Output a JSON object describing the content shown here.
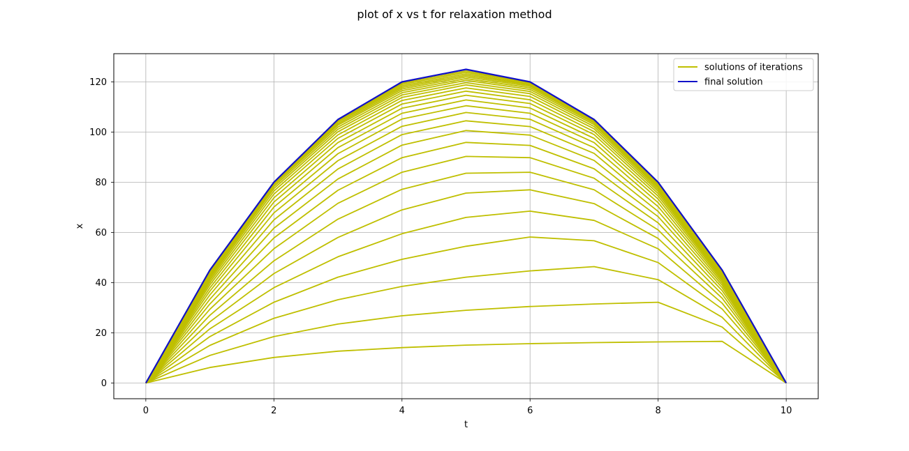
{
  "chart_data": {
    "type": "line",
    "title": "plot of x vs t for relaxation method",
    "xlabel": "t",
    "ylabel": "x",
    "xlim": [
      -0.5,
      10.5
    ],
    "ylim": [
      -6.25,
      131.25
    ],
    "xticks": [
      0,
      2,
      4,
      6,
      8,
      10
    ],
    "yticks": [
      0,
      20,
      40,
      60,
      80,
      100,
      120
    ],
    "grid": true,
    "legend_position": "top-right",
    "x": [
      0,
      1,
      2,
      3,
      4,
      5,
      6,
      7,
      8,
      9,
      10
    ],
    "iterations": {
      "legend": "solutions of iterations",
      "color": "#bfbf00",
      "series": [
        [
          0,
          6.2,
          10.2,
          12.7,
          14.1,
          15.1,
          15.7,
          16.1,
          16.4,
          16.6,
          0
        ],
        [
          0,
          11.0,
          18.5,
          23.5,
          26.8,
          29.0,
          30.5,
          31.5,
          32.2,
          22.3,
          0
        ],
        [
          0,
          15.0,
          25.8,
          33.2,
          38.5,
          42.2,
          44.7,
          46.4,
          41.2,
          26.2,
          0
        ],
        [
          0,
          18.5,
          32.2,
          42.2,
          49.3,
          54.5,
          58.2,
          56.7,
          48.0,
          29.5,
          0
        ],
        [
          0,
          21.6,
          38.0,
          50.3,
          59.5,
          66.0,
          68.5,
          64.8,
          53.5,
          31.8,
          0
        ],
        [
          0,
          24.4,
          43.6,
          58.0,
          69.0,
          75.7,
          77.0,
          71.5,
          57.6,
          33.8,
          0
        ],
        [
          0,
          27.0,
          48.7,
          65.3,
          77.2,
          83.6,
          84.0,
          77.0,
          61.0,
          35.4,
          0
        ],
        [
          0,
          29.4,
          53.5,
          71.6,
          84.0,
          90.3,
          89.8,
          81.6,
          63.8,
          36.8,
          0
        ],
        [
          0,
          31.5,
          57.8,
          76.8,
          89.8,
          95.9,
          94.7,
          85.4,
          66.3,
          38.0,
          0
        ],
        [
          0,
          33.4,
          61.7,
          81.3,
          94.8,
          100.6,
          98.8,
          88.7,
          68.4,
          39.0,
          0
        ],
        [
          0,
          35.1,
          65.0,
          85.3,
          99.0,
          104.5,
          102.2,
          91.5,
          70.3,
          39.9,
          0
        ],
        [
          0,
          36.6,
          67.8,
          88.6,
          102.3,
          107.8,
          105.1,
          93.8,
          71.9,
          40.7,
          0
        ],
        [
          0,
          37.9,
          70.1,
          91.4,
          105.2,
          110.5,
          107.5,
          95.8,
          73.3,
          41.4,
          0
        ],
        [
          0,
          39.1,
          72.1,
          93.8,
          107.5,
          112.8,
          109.6,
          97.5,
          74.5,
          42.0,
          0
        ],
        [
          0,
          40.1,
          73.8,
          95.8,
          109.5,
          114.7,
          111.4,
          99.0,
          75.5,
          42.5,
          0
        ],
        [
          0,
          41.0,
          75.3,
          97.5,
          111.2,
          116.3,
          112.9,
          100.2,
          76.4,
          42.9,
          0
        ],
        [
          0,
          41.8,
          76.5,
          98.9,
          112.6,
          117.6,
          114.2,
          101.3,
          77.1,
          43.3,
          0
        ],
        [
          0,
          42.5,
          77.5,
          100.1,
          113.8,
          118.8,
          115.3,
          102.2,
          77.8,
          43.6,
          0
        ],
        [
          0,
          43.1,
          78.3,
          101.1,
          114.8,
          119.7,
          116.2,
          103.0,
          78.3,
          43.9,
          0
        ],
        [
          0,
          43.6,
          79.0,
          102.0,
          115.7,
          120.6,
          117.0,
          103.6,
          78.8,
          44.2,
          0
        ],
        [
          0,
          44.0,
          79.5,
          102.8,
          116.5,
          121.3,
          117.7,
          104.1,
          79.2,
          44.4,
          0
        ],
        [
          0,
          44.3,
          79.8,
          103.4,
          117.2,
          122.0,
          118.3,
          104.5,
          79.5,
          44.6,
          0
        ],
        [
          0,
          44.6,
          80.0,
          104.0,
          117.8,
          122.6,
          118.8,
          104.8,
          79.7,
          44.8,
          0
        ],
        [
          0,
          44.8,
          80.0,
          104.5,
          118.4,
          123.2,
          119.2,
          105.0,
          79.9,
          44.9,
          0
        ],
        [
          0,
          45.0,
          80.0,
          104.8,
          119.0,
          123.8,
          119.6,
          105.0,
          80.0,
          45.0,
          0
        ],
        [
          0,
          45.0,
          80.0,
          105.0,
          119.5,
          124.4,
          119.8,
          105.0,
          80.0,
          45.0,
          0
        ]
      ]
    },
    "final": {
      "legend": "final solution",
      "color": "#1010c8",
      "y": [
        0,
        45,
        80,
        105,
        120,
        125,
        120,
        105,
        80,
        45,
        0
      ]
    }
  }
}
